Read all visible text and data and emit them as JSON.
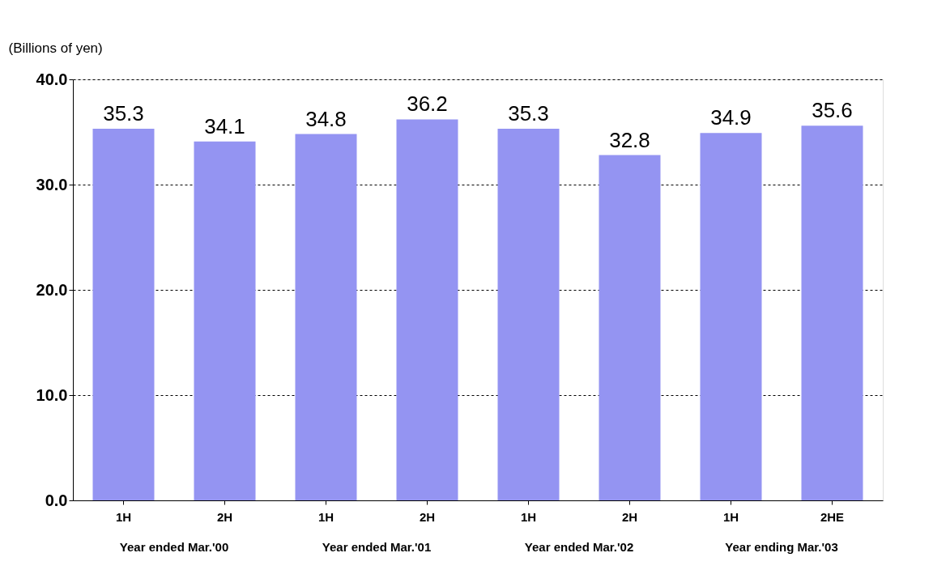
{
  "chart_data": {
    "type": "bar",
    "ylabel": "(Billions of yen)",
    "categories": [
      "1H",
      "2H",
      "1H",
      "2H",
      "1H",
      "2H",
      "1H",
      "2HE"
    ],
    "values": [
      35.3,
      34.1,
      34.8,
      36.2,
      35.3,
      32.8,
      34.9,
      35.6
    ],
    "color": "#9494f2",
    "ylim": [
      0,
      40
    ],
    "yticks": [
      {
        "value": 0,
        "label": "0.0"
      },
      {
        "value": 10,
        "label": "10.0"
      },
      {
        "value": 20,
        "label": "20.0"
      },
      {
        "value": 30,
        "label": "30.0"
      },
      {
        "value": 40,
        "label": "40.0"
      }
    ],
    "grid": "y",
    "data_labels": true,
    "annotations": [
      "Year ended Mar.'00",
      "Year ended Mar.'01",
      "Year ended Mar.'02",
      "Year ending Mar.'03"
    ]
  }
}
